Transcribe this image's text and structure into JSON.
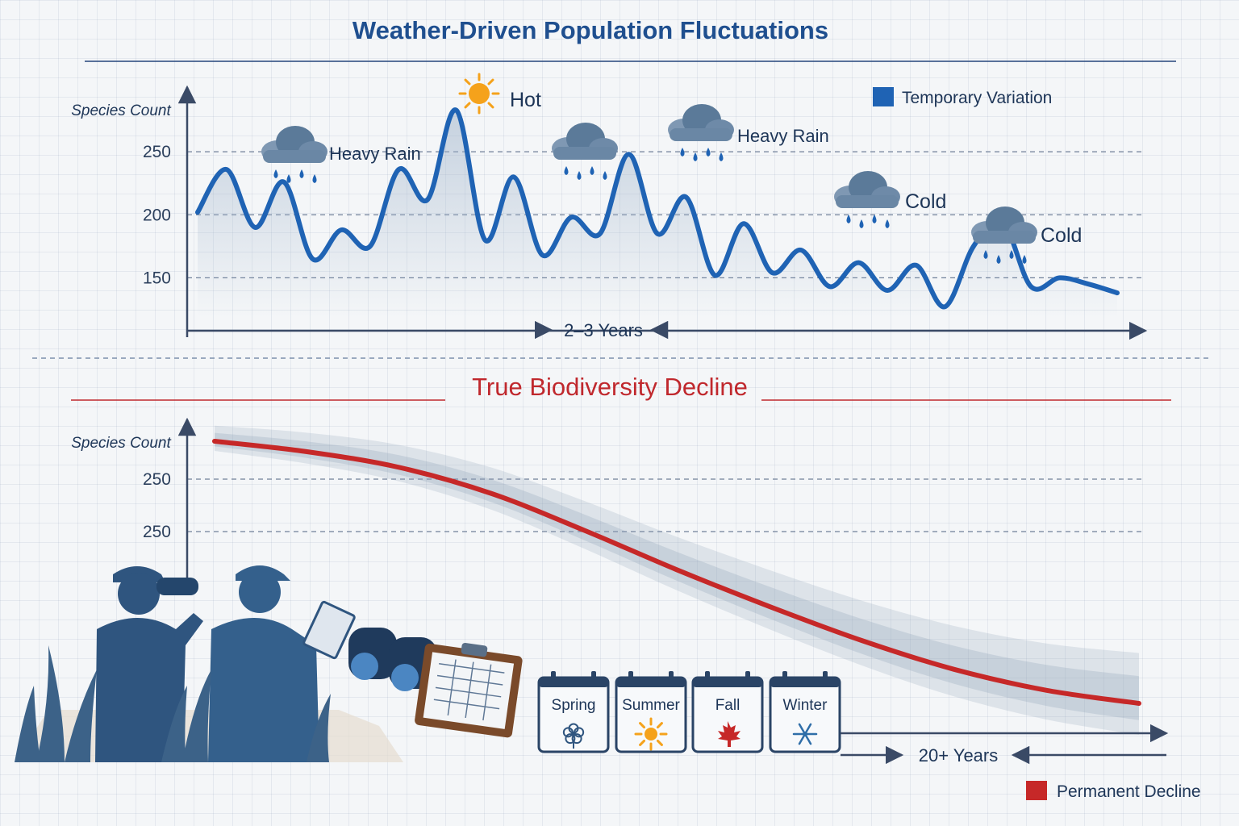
{
  "colors": {
    "temporary": "#1f63b4",
    "permanent": "#c62828",
    "axis": "#3a4a66",
    "ink": "#1d3557",
    "cloud": "#5b7a99",
    "sun": "#f5a21b",
    "silhouette": "#2f557f"
  },
  "chart_data": [
    {
      "type": "line",
      "title": "Weather-Driven Population Fluctuations",
      "ylabel": "Species Count",
      "y_ticks": [
        "250",
        "200",
        "150"
      ],
      "y_tick_values": [
        250,
        200,
        150
      ],
      "ylim": [
        108,
        300
      ],
      "gridlines": "dashed at 250, 200, 150",
      "span_label": "2–3 Years",
      "legend": {
        "label": "Temporary Variation",
        "placement": "top-right"
      },
      "series": [
        {
          "name": "Temporary Variation",
          "x": [
            0,
            1,
            2,
            3,
            4,
            5,
            6,
            7,
            8,
            9,
            10,
            11,
            12,
            13,
            14,
            15,
            16,
            17,
            18,
            19,
            20,
            21,
            22,
            23,
            24,
            25,
            26,
            27,
            28,
            29,
            30,
            31,
            32
          ],
          "values": [
            202,
            236,
            190,
            226,
            165,
            188,
            175,
            236,
            212,
            283,
            180,
            230,
            168,
            198,
            185,
            248,
            185,
            214,
            152,
            193,
            154,
            172,
            143,
            162,
            140,
            160,
            127,
            175,
            195,
            143,
            150,
            145,
            138
          ]
        }
      ],
      "annotations": [
        {
          "label": "Heavy Rain",
          "icon": "rain-cloud-icon",
          "at_x": 3
        },
        {
          "label": "Hot",
          "icon": "sun-icon",
          "at_x": 9
        },
        {
          "label": "",
          "icon": "rain-cloud-icon",
          "at_x": 11
        },
        {
          "label": "Heavy Rain",
          "icon": "rain-cloud-icon",
          "at_x": 15
        },
        {
          "label": "Cold",
          "icon": "rain-cloud-icon",
          "at_x": 21
        },
        {
          "label": "Cold",
          "icon": "rain-cloud-icon",
          "at_x": 26
        }
      ]
    },
    {
      "type": "line",
      "title": "True Biodiversity Decline",
      "ylabel": "Species Count",
      "y_ticks": [
        "250",
        "250"
      ],
      "span_label": "20+ Years",
      "legend": {
        "label": "Permanent Decline",
        "placement": "bottom-right"
      },
      "series": [
        {
          "name": "Permanent Decline",
          "x": [
            0,
            0.1,
            0.2,
            0.3,
            0.4,
            0.5,
            0.6,
            0.7,
            0.8,
            0.9,
            1.0
          ],
          "values": [
            1.0,
            0.96,
            0.9,
            0.8,
            0.66,
            0.51,
            0.37,
            0.24,
            0.13,
            0.05,
            0.0
          ]
        }
      ],
      "seasons": [
        {
          "label": "Spring",
          "icon": "flower-icon"
        },
        {
          "label": "Summer",
          "icon": "sun-icon"
        },
        {
          "label": "Fall",
          "icon": "maple-leaf-icon"
        },
        {
          "label": "Winter",
          "icon": "snowflake-icon"
        }
      ]
    }
  ]
}
